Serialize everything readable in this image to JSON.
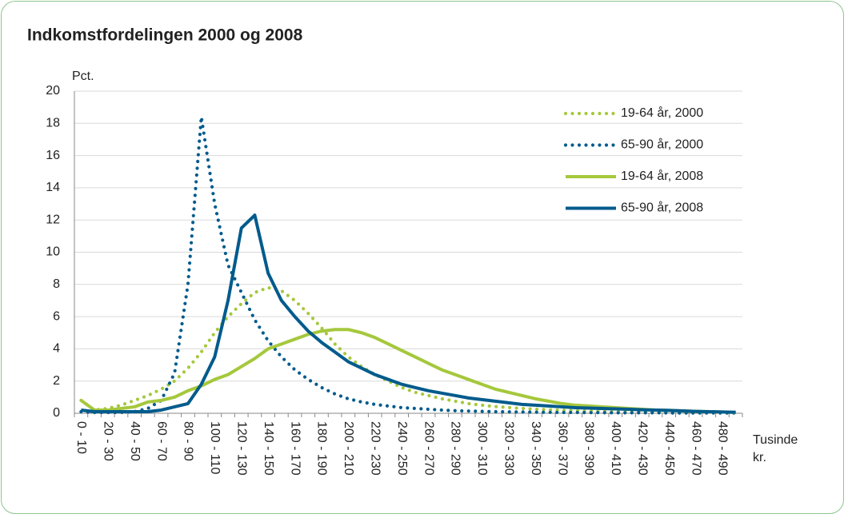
{
  "chart_data": {
    "type": "line",
    "title": "Indkomstfordelingen 2000 og 2008",
    "y_label": "Pct.",
    "x_label": "Tusinde kr.",
    "categories": [
      "0 - 10",
      null,
      "20 - 30",
      null,
      "40 - 50",
      null,
      "60 - 70",
      null,
      "80 - 90",
      null,
      "100 - 110",
      null,
      "120 - 130",
      null,
      "140 - 150",
      null,
      "160 - 170",
      null,
      "180 - 190",
      null,
      "200 - 210",
      null,
      "220 - 230",
      null,
      "240 - 250",
      null,
      "260 - 270",
      null,
      "280 - 290",
      null,
      "300 - 310",
      null,
      "320 - 330",
      null,
      "340 - 350",
      null,
      "360 - 370",
      null,
      "380 - 390",
      null,
      "400 - 410",
      null,
      "420 - 430",
      null,
      "440 - 450",
      null,
      "460 - 470",
      null,
      "480 - 490",
      null
    ],
    "series": [
      {
        "name": "19-64 år, 2000",
        "color": "#a5c83c",
        "style": "dotted",
        "values": [
          0.8,
          0.2,
          0.3,
          0.5,
          0.8,
          1.1,
          1.5,
          2.0,
          2.8,
          3.8,
          5.0,
          6.0,
          6.8,
          7.5,
          7.8,
          7.6,
          7.0,
          6.2,
          5.3,
          4.3,
          3.5,
          2.9,
          2.4,
          2.0,
          1.6,
          1.3,
          1.1,
          0.9,
          0.75,
          0.6,
          0.5,
          0.42,
          0.36,
          0.3,
          0.26,
          0.22,
          0.19,
          0.16,
          0.14,
          0.12,
          0.11,
          0.1,
          0.09,
          0.08,
          0.07,
          0.06,
          0.05,
          0.05,
          0.04,
          0.04
        ]
      },
      {
        "name": "65-90 år, 2000",
        "color": "#005b8c",
        "style": "dotted",
        "values": [
          0.1,
          0.05,
          0.05,
          0.05,
          0.1,
          0.3,
          0.8,
          2.5,
          8.0,
          18.4,
          13.0,
          9.2,
          7.5,
          5.8,
          4.5,
          3.5,
          2.7,
          2.1,
          1.6,
          1.2,
          0.9,
          0.7,
          0.55,
          0.45,
          0.35,
          0.3,
          0.25,
          0.2,
          0.16,
          0.14,
          0.12,
          0.1,
          0.09,
          0.08,
          0.07,
          0.06,
          0.05,
          0.05,
          0.04,
          0.04,
          0.03,
          0.03,
          0.03,
          0.03,
          0.02,
          0.02,
          0.02,
          0.02,
          0.02,
          0.02
        ]
      },
      {
        "name": "19-64 år, 2008",
        "color": "#a5c83c",
        "style": "solid",
        "values": [
          0.8,
          0.2,
          0.2,
          0.3,
          0.4,
          0.7,
          0.8,
          1.0,
          1.4,
          1.7,
          2.1,
          2.4,
          2.9,
          3.4,
          4.0,
          4.3,
          4.6,
          4.9,
          5.1,
          5.2,
          5.2,
          5.0,
          4.7,
          4.3,
          3.9,
          3.5,
          3.1,
          2.7,
          2.4,
          2.1,
          1.8,
          1.5,
          1.3,
          1.1,
          0.9,
          0.75,
          0.6,
          0.5,
          0.45,
          0.4,
          0.35,
          0.3,
          0.25,
          0.2,
          0.18,
          0.15,
          0.12,
          0.1,
          0.08,
          0.05
        ]
      },
      {
        "name": "65-90 år, 2008",
        "color": "#005b8c",
        "style": "solid",
        "values": [
          0.2,
          0.1,
          0.1,
          0.1,
          0.1,
          0.1,
          0.2,
          0.4,
          0.6,
          1.8,
          3.5,
          7.0,
          11.5,
          12.3,
          8.7,
          7.0,
          6.0,
          5.1,
          4.4,
          3.8,
          3.2,
          2.8,
          2.4,
          2.1,
          1.8,
          1.6,
          1.4,
          1.25,
          1.1,
          0.95,
          0.85,
          0.75,
          0.65,
          0.55,
          0.5,
          0.45,
          0.4,
          0.35,
          0.32,
          0.3,
          0.27,
          0.25,
          0.22,
          0.2,
          0.18,
          0.15,
          0.12,
          0.1,
          0.08,
          0.06
        ]
      }
    ],
    "ylim": [
      0,
      20
    ],
    "yticks": [
      0,
      2,
      4,
      6,
      8,
      10,
      12,
      14,
      16,
      18,
      20
    ],
    "grid": true,
    "legend": "upper right"
  }
}
